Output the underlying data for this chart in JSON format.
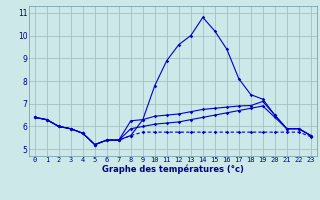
{
  "xlabel": "Graphe des températures (°c)",
  "background_color": "#cce8e8",
  "line_color": "#0000cc",
  "x_hours": [
    0,
    1,
    2,
    3,
    4,
    5,
    6,
    7,
    8,
    9,
    10,
    11,
    12,
    13,
    14,
    15,
    16,
    17,
    18,
    19,
    20,
    21,
    22,
    23
  ],
  "temp_actual": [
    6.4,
    6.3,
    6.0,
    5.9,
    5.7,
    5.2,
    5.4,
    5.4,
    5.6,
    6.3,
    7.8,
    8.9,
    9.6,
    10.0,
    10.8,
    10.2,
    9.4,
    8.1,
    7.4,
    7.2,
    6.5,
    5.9,
    5.9,
    5.6
  ],
  "temp_min": [
    6.4,
    6.3,
    6.0,
    5.9,
    5.7,
    5.2,
    5.4,
    5.4,
    5.6,
    5.75,
    5.75,
    5.75,
    5.75,
    5.75,
    5.75,
    5.75,
    5.75,
    5.75,
    5.75,
    5.75,
    5.75,
    5.75,
    5.75,
    5.55
  ],
  "temp_max": [
    6.4,
    6.3,
    6.0,
    5.9,
    5.7,
    5.2,
    5.4,
    5.4,
    6.25,
    6.3,
    6.45,
    6.5,
    6.55,
    6.65,
    6.75,
    6.8,
    6.85,
    6.9,
    6.92,
    7.1,
    6.5,
    5.9,
    5.9,
    5.6
  ],
  "temp_avg": [
    6.4,
    6.3,
    6.0,
    5.9,
    5.7,
    5.2,
    5.4,
    5.4,
    5.9,
    6.0,
    6.1,
    6.15,
    6.2,
    6.3,
    6.4,
    6.5,
    6.6,
    6.7,
    6.8,
    6.9,
    6.4,
    5.9,
    5.9,
    5.6
  ],
  "ylim": [
    4.7,
    11.3
  ],
  "yticks": [
    5,
    6,
    7,
    8,
    9,
    10,
    11
  ],
  "grid_color": "#99bbbb",
  "marker": "D",
  "marker_size": 1.8,
  "line_width": 0.8,
  "tick_fontsize": 5.0,
  "xlabel_fontsize": 6.0
}
